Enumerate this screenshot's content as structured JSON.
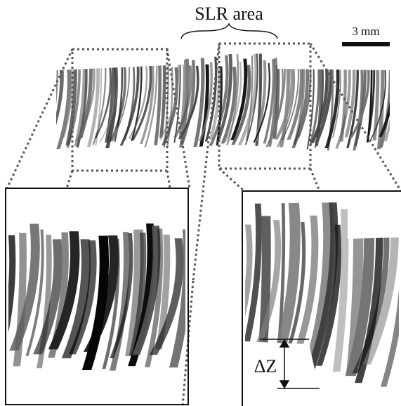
{
  "labels": {
    "region": "SLR area",
    "scale_bar": "3 mm",
    "offset": "ΔZ"
  }
}
